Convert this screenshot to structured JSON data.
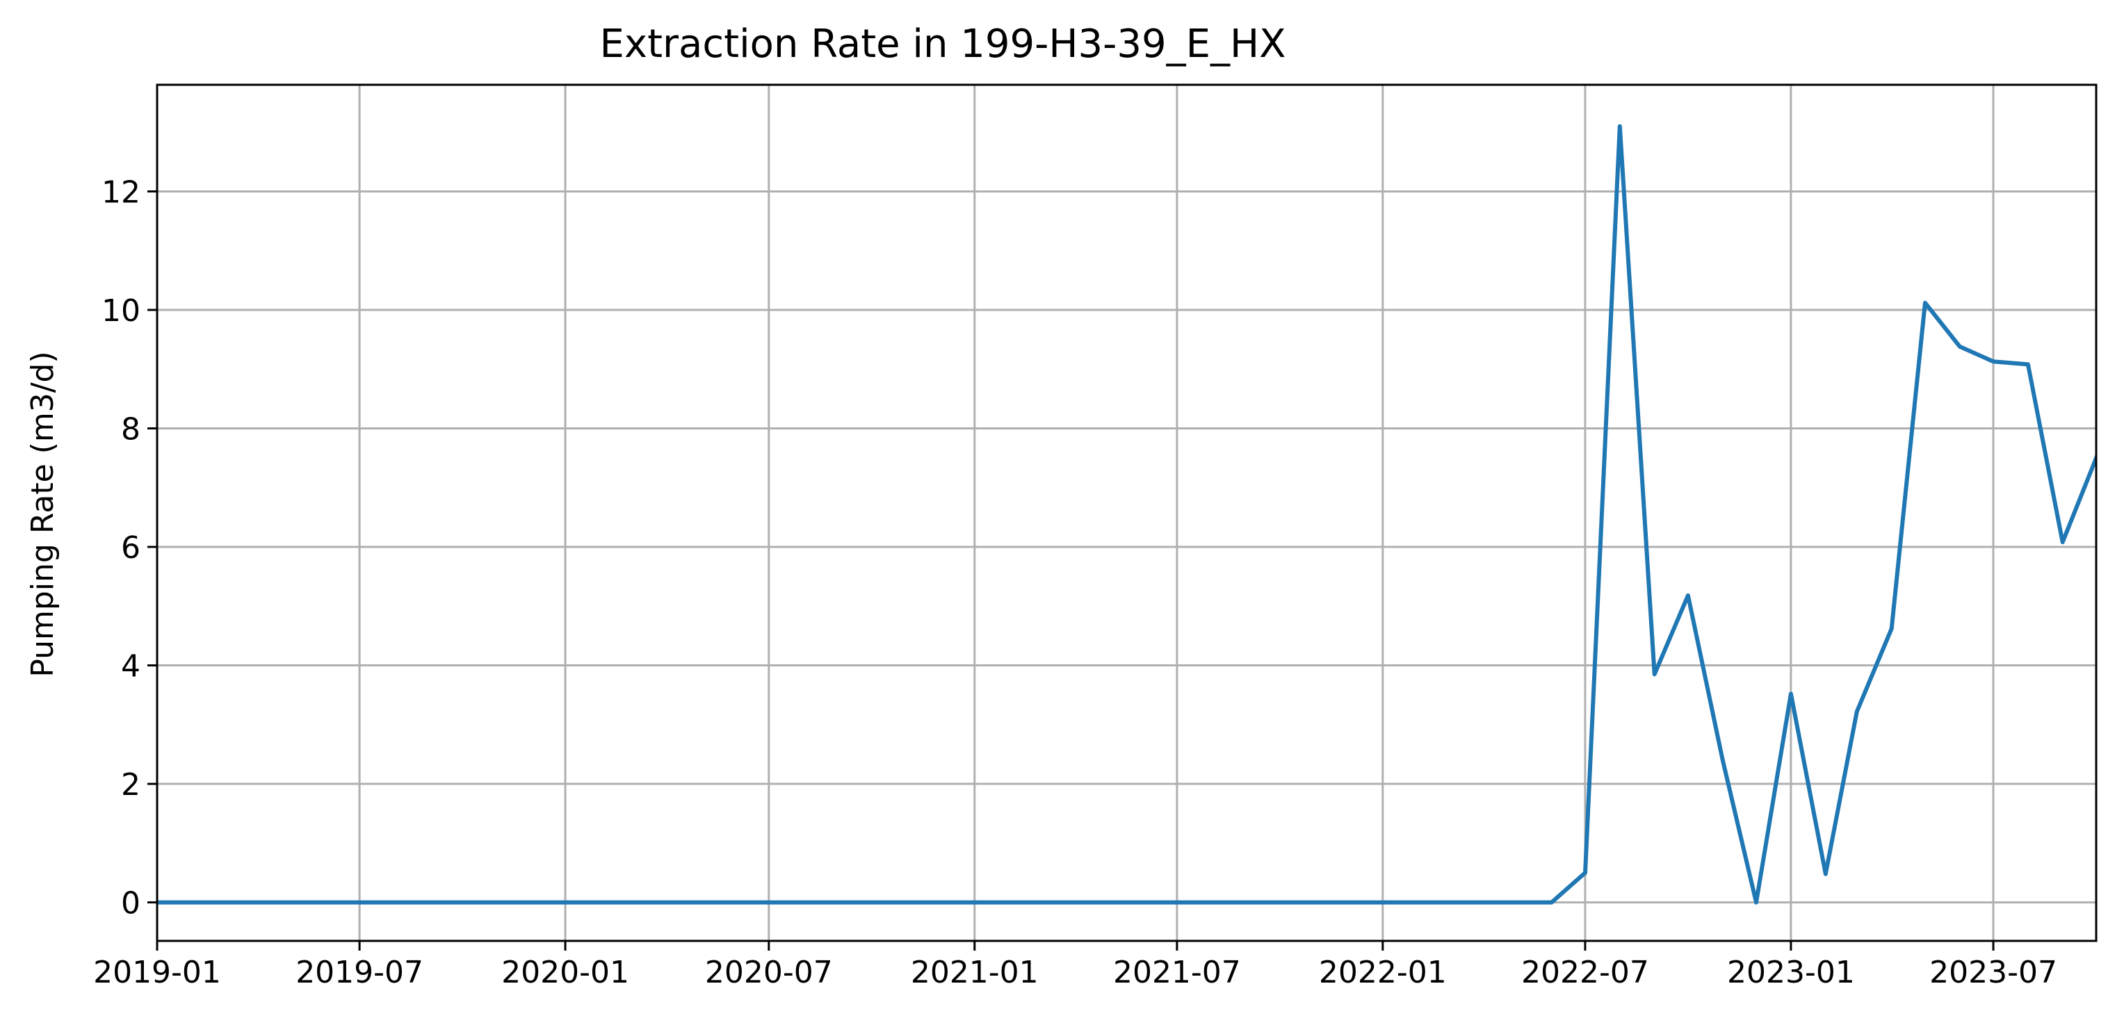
{
  "chart_data": {
    "type": "line",
    "title": "Extraction Rate in 199-H3-39_E_HX",
    "xlabel": "",
    "ylabel": "Pumping Rate (m3/d)",
    "xlim": [
      "2019-01-01",
      "2023-10-01"
    ],
    "ylim": [
      -0.65,
      13.8
    ],
    "x_ticks": [
      "2019-01",
      "2019-07",
      "2020-01",
      "2020-07",
      "2021-01",
      "2021-07",
      "2022-01",
      "2022-07",
      "2023-01",
      "2023-07"
    ],
    "y_ticks": [
      0,
      2,
      4,
      6,
      8,
      10,
      12
    ],
    "grid": true,
    "colors": {
      "line": "#1f77b4",
      "grid": "#b0b0b0",
      "axes": "#000000"
    },
    "series": [
      {
        "x": [
          "2019-01-01",
          "2019-02-01",
          "2019-03-01",
          "2019-04-01",
          "2019-05-01",
          "2019-06-01",
          "2019-07-01",
          "2019-08-01",
          "2019-09-01",
          "2019-10-01",
          "2019-11-01",
          "2019-12-01",
          "2020-01-01",
          "2020-02-01",
          "2020-03-01",
          "2020-04-01",
          "2020-05-01",
          "2020-06-01",
          "2020-07-01",
          "2020-08-01",
          "2020-09-01",
          "2020-10-01",
          "2020-11-01",
          "2020-12-01",
          "2021-01-01",
          "2021-02-01",
          "2021-03-01",
          "2021-04-01",
          "2021-05-01",
          "2021-06-01",
          "2021-07-01",
          "2021-08-01",
          "2021-09-01",
          "2021-10-01",
          "2021-11-01",
          "2021-12-01",
          "2022-01-01",
          "2022-02-01",
          "2022-03-01",
          "2022-04-01",
          "2022-05-01",
          "2022-06-01",
          "2022-07-01",
          "2022-08-01",
          "2022-09-01",
          "2022-10-01",
          "2022-11-01",
          "2022-12-01",
          "2023-01-01",
          "2023-02-01",
          "2023-03-01",
          "2023-04-01",
          "2023-05-01",
          "2023-06-01",
          "2023-07-01",
          "2023-08-01",
          "2023-09-01",
          "2023-10-01"
        ],
        "values": [
          0,
          0,
          0,
          0,
          0,
          0,
          0,
          0,
          0,
          0,
          0,
          0,
          0,
          0,
          0,
          0,
          0,
          0,
          0,
          0,
          0,
          0,
          0,
          0,
          0,
          0,
          0,
          0,
          0,
          0,
          0,
          0,
          0,
          0,
          0,
          0,
          0,
          0,
          0,
          0,
          0,
          0,
          0.5,
          13.1,
          3.85,
          5.18,
          2.4,
          0,
          3.52,
          0.48,
          3.22,
          4.62,
          10.12,
          9.38,
          9.13,
          9.08,
          6.08,
          7.5
        ]
      }
    ]
  }
}
